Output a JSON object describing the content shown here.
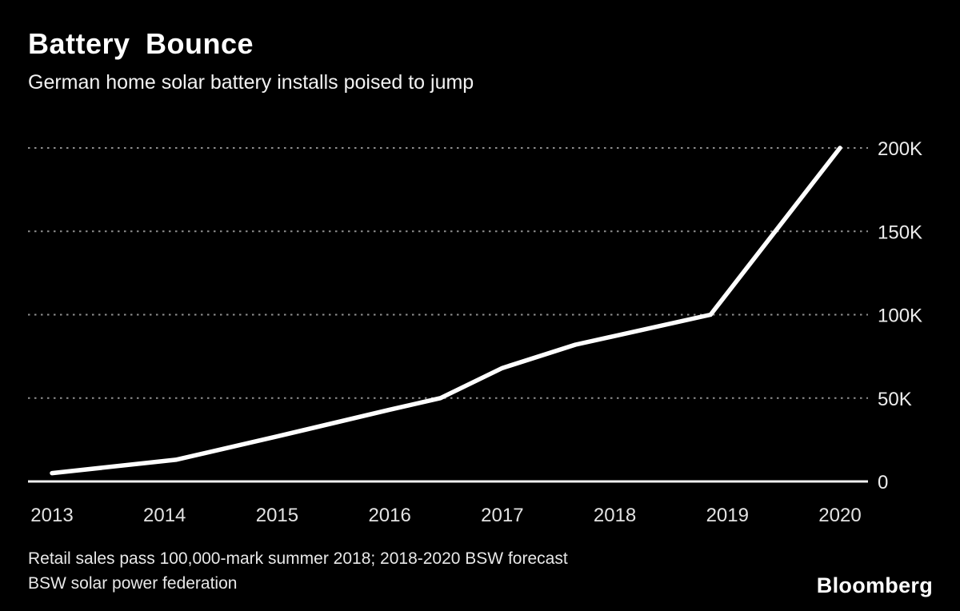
{
  "header": {
    "title": "Battery Bounce",
    "subtitle": "German home solar battery installs poised to jump"
  },
  "footer": {
    "note_line1": "Retail sales pass 100,000-mark summer 2018; 2018-2020 BSW forecast",
    "note_line2": "BSW solar power federation",
    "brand": "Bloomberg"
  },
  "colors": {
    "background": "#000000",
    "line": "#ffffff",
    "grid": "#8f8f8f",
    "baseline": "#f0f0f0",
    "tick_text": "#e8e8e8"
  },
  "chart_data": {
    "type": "line",
    "title": "Battery Bounce",
    "subtitle": "German home solar battery installs poised to jump",
    "x": [
      2013,
      2014.1,
      2015,
      2016,
      2016.45,
      2017,
      2017.65,
      2018.85,
      2020
    ],
    "values": [
      5000,
      13000,
      27000,
      43000,
      50000,
      68000,
      82000,
      100000,
      200000
    ],
    "xlim": [
      2013,
      2020
    ],
    "ylim": [
      0,
      200000
    ],
    "xticks": [
      2013,
      2014,
      2015,
      2016,
      2017,
      2018,
      2019,
      2020
    ],
    "xtick_labels": [
      "2013",
      "2014",
      "2015",
      "2016",
      "2017",
      "2018",
      "2019",
      "2020"
    ],
    "yticks": [
      0,
      50000,
      100000,
      150000,
      200000
    ],
    "ytick_labels": [
      "0",
      "50K",
      "100K",
      "150K",
      "200K"
    ],
    "grid": "horizontal-dotted",
    "legend": "none",
    "ytick_side": "right",
    "annotations": [
      "Retail sales pass 100,000-mark summer 2018; 2018-2020 BSW forecast",
      "BSW solar power federation"
    ]
  }
}
